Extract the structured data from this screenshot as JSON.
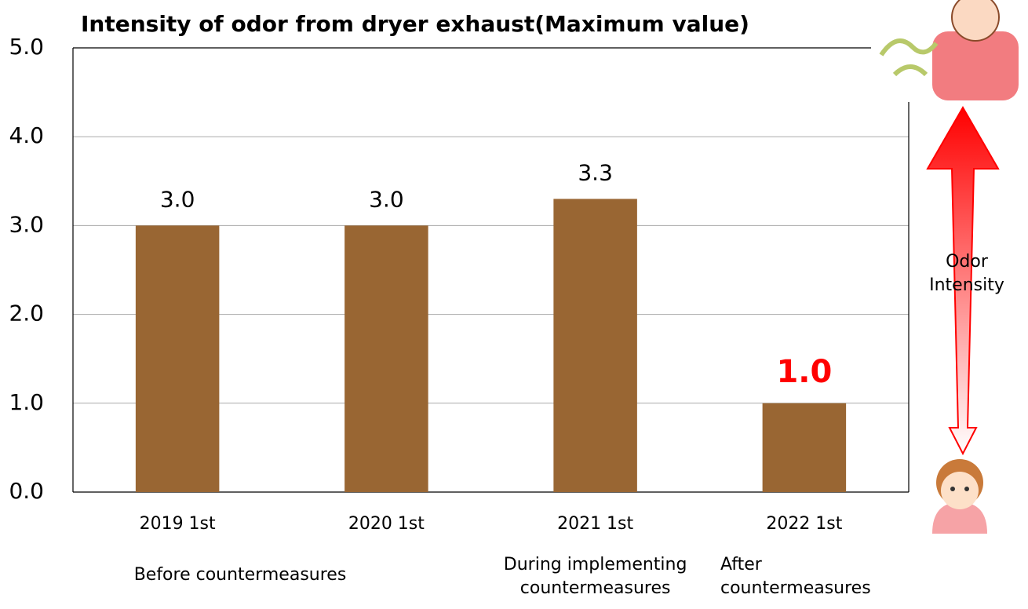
{
  "chart_data": {
    "type": "bar",
    "title": "Intensity of odor from dryer exhaust(Maximum value)",
    "categories": [
      "2019 1st",
      "2020 1st",
      "2021 1st",
      "2022 1st"
    ],
    "values": [
      3.0,
      3.0,
      3.3,
      1.0
    ],
    "value_labels": [
      "3.0",
      "3.0",
      "3.3",
      "1.0"
    ],
    "value_label_colors": [
      "#000000",
      "#000000",
      "#000000",
      "#ff0000"
    ],
    "color": "#996633",
    "ylim": [
      0,
      5
    ],
    "yticks": [
      {
        "value": 0,
        "label": "0.0"
      },
      {
        "value": 1,
        "label": "1.0"
      },
      {
        "value": 2,
        "label": "2.0"
      },
      {
        "value": 3,
        "label": "3.0"
      },
      {
        "value": 4,
        "label": "4.0"
      },
      {
        "value": 5,
        "label": "5.0"
      }
    ],
    "grid": true,
    "annotations": [
      [
        "Before countermeasures"
      ],
      [
        "During implementing",
        "countermeasures"
      ],
      [
        "After",
        "countermeasures"
      ]
    ],
    "side_label": [
      "Odor",
      "Intensity"
    ]
  }
}
